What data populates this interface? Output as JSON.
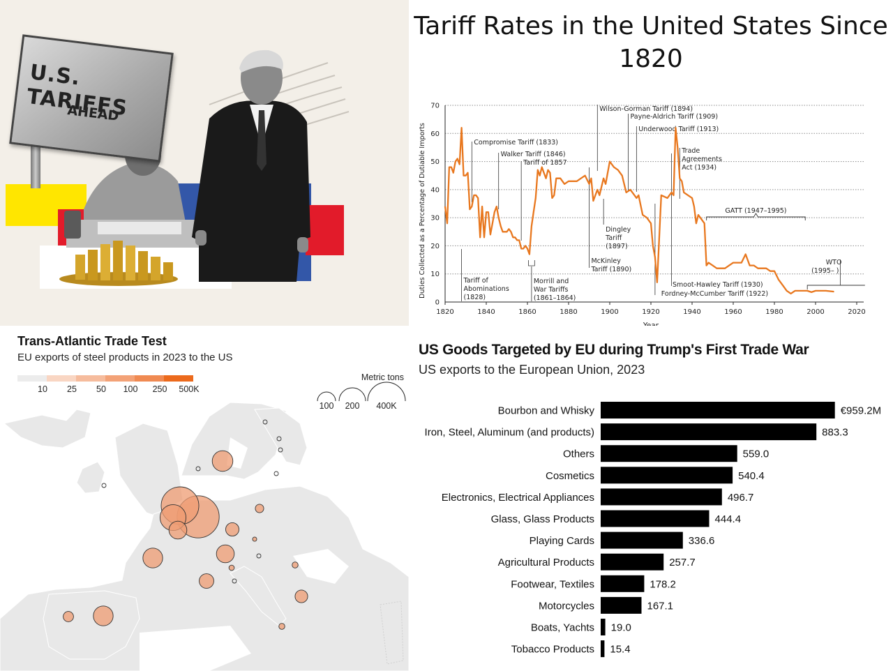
{
  "photo": {
    "sign_line1": "U.S. TARIFFS",
    "sign_line2": "AHEAD"
  },
  "chart_data": [
    {
      "type": "line",
      "title": "Tariff Rates in the United States Since 1820",
      "xlabel": "Year",
      "ylabel": "Duties Collected as a Percentage of Dutiable Imports",
      "xlim": [
        1820,
        2020
      ],
      "ylim": [
        0,
        70
      ],
      "xticks": [
        "1820",
        "1840",
        "1860",
        "1880",
        "1900",
        "1920",
        "1940",
        "1960",
        "1980",
        "2000",
        "2020"
      ],
      "yticks": [
        "0",
        "10",
        "20",
        "30",
        "40",
        "50",
        "60",
        "70"
      ],
      "grid": "horizontal dotted",
      "line_color": "#e8771e",
      "x": [
        1820,
        1821,
        1822,
        1823,
        1824,
        1825,
        1826,
        1827,
        1828,
        1829,
        1830,
        1831,
        1832,
        1833,
        1834,
        1835,
        1836,
        1837,
        1838,
        1839,
        1840,
        1841,
        1842,
        1843,
        1844,
        1845,
        1846,
        1847,
        1848,
        1849,
        1850,
        1851,
        1852,
        1853,
        1854,
        1855,
        1856,
        1857,
        1858,
        1859,
        1860,
        1861,
        1862,
        1863,
        1864,
        1865,
        1866,
        1867,
        1868,
        1869,
        1870,
        1871,
        1872,
        1873,
        1874,
        1875,
        1876,
        1878,
        1880,
        1882,
        1884,
        1886,
        1888,
        1890,
        1891,
        1892,
        1894,
        1895,
        1897,
        1898,
        1900,
        1902,
        1904,
        1906,
        1908,
        1910,
        1912,
        1913,
        1914,
        1916,
        1918,
        1920,
        1921,
        1922,
        1923,
        1925,
        1928,
        1930,
        1931,
        1932,
        1933,
        1934,
        1935,
        1936,
        1938,
        1940,
        1941,
        1942,
        1943,
        1944,
        1945,
        1946,
        1947,
        1948,
        1950,
        1952,
        1954,
        1956,
        1958,
        1960,
        1962,
        1964,
        1966,
        1968,
        1970,
        1972,
        1974,
        1976,
        1978,
        1980,
        1982,
        1984,
        1986,
        1988,
        1990,
        1992,
        1994,
        1996,
        1998,
        2000,
        2002,
        2005,
        2009
      ],
      "y": [
        34,
        28,
        48,
        48,
        46,
        50,
        51,
        49,
        62,
        45,
        45,
        46,
        33,
        34,
        38,
        38,
        37,
        23,
        34,
        23,
        32,
        32,
        24,
        28,
        32,
        34,
        30,
        27,
        25,
        25,
        25,
        26,
        25,
        23,
        23,
        22,
        22,
        19,
        19,
        20,
        19,
        17,
        27,
        32,
        37,
        47,
        45,
        48,
        46,
        44,
        47,
        46,
        37,
        38,
        44,
        44,
        44,
        42,
        43,
        43,
        43,
        44,
        45,
        42,
        44,
        36,
        40,
        38,
        44,
        42,
        50,
        48,
        47,
        45,
        39,
        40,
        38,
        37,
        38,
        31,
        30,
        28,
        20,
        16,
        7,
        38,
        37,
        39,
        38,
        62,
        55,
        44,
        43,
        39,
        38,
        37,
        34,
        28,
        31,
        30,
        29,
        28,
        13,
        14,
        13,
        12,
        12,
        12,
        13,
        14,
        14,
        14,
        17,
        13,
        13,
        12,
        12,
        12,
        11,
        11,
        8,
        6,
        4,
        3,
        4,
        4,
        4,
        4,
        3.5,
        4,
        4,
        4,
        3.7
      ],
      "annotations": [
        "Tariff of Abominations (1828)",
        "Compromise Tariff (1833)",
        "Walker Tariff (1846)",
        "Tariff of 1857",
        "Morrill and War Tariffs (1861–1864)",
        "McKinley Tariff (1890)",
        "Wilson-Gorman Tariff (1894)",
        "Dingley Tariff (1897)",
        "Payne-Aldrich Tariff (1909)",
        "Underwood Tariff (1913)",
        "Fordney-McCumber Tariff (1922)",
        "Smoot-Hawley Tariff (1930)",
        "Trade Agreements Act (1934)",
        "GATT (1947–1995)",
        "WTO (1995– )"
      ]
    },
    {
      "type": "bubble map",
      "title": "Trans-Atlantic Trade Test",
      "subtitle": "EU exports of steel products in 2023 to the US",
      "color_legend": [
        "10",
        "25",
        "50",
        "100",
        "250",
        "500K"
      ],
      "color_legend_colors": [
        "#ececec",
        "#f9d6c3",
        "#f6bc9d",
        "#f3a277",
        "#f08a52",
        "#ec6a1c"
      ],
      "size_legend_title": "Metric tons",
      "size_legend": [
        "100",
        "200",
        "400K"
      ],
      "bubble_color": "#ef9c73",
      "bubbles": [
        {
          "loc": "Netherlands",
          "value": 400
        },
        {
          "loc": "Germany",
          "value": 500
        },
        {
          "loc": "Belgium",
          "value": 190
        },
        {
          "loc": "France (north)",
          "value": 90
        },
        {
          "loc": "Sweden",
          "value": 120
        },
        {
          "loc": "Czechia",
          "value": 50
        },
        {
          "loc": "Austria",
          "value": 90
        },
        {
          "loc": "France",
          "value": 110
        },
        {
          "loc": "Italy",
          "value": 60
        },
        {
          "loc": "Spain",
          "value": 110
        },
        {
          "loc": "Portugal",
          "value": 30
        },
        {
          "loc": "Bulgaria",
          "value": 45
        },
        {
          "loc": "Poland",
          "value": 20
        },
        {
          "loc": "Slovakia",
          "value": 5
        },
        {
          "loc": "Romania",
          "value": 10
        },
        {
          "loc": "Greece",
          "value": 10
        },
        {
          "loc": "Slovenia",
          "value": 8
        },
        {
          "loc": "Finland",
          "value": 3
        },
        {
          "loc": "Estonia",
          "value": 2
        },
        {
          "loc": "Latvia",
          "value": 2
        },
        {
          "loc": "Lithuania",
          "value": 2
        },
        {
          "loc": "Denmark",
          "value": 2
        },
        {
          "loc": "Ireland",
          "value": 2
        },
        {
          "loc": "Hungary",
          "value": 3
        },
        {
          "loc": "Croatia",
          "value": 3
        }
      ]
    },
    {
      "type": "bar",
      "orientation": "horizontal",
      "title": "US Goods Targeted by EU during Trump's First Trade War",
      "subtitle": "US exports to the European Union, 2023",
      "bar_color": "#000000",
      "categories": [
        "Bourbon and Whisky",
        "Iron, Steel, Aluminum (and products)",
        "Others",
        "Cosmetics",
        "Electronics, Electrical Appliances",
        "Glass, Glass Products",
        "Playing Cards",
        "Agricultural Products",
        "Footwear, Textiles",
        "Motorcycles",
        "Boats, Yachts",
        "Tobacco Products"
      ],
      "values": [
        959.2,
        883.3,
        559.0,
        540.4,
        496.7,
        444.4,
        336.6,
        257.7,
        178.2,
        167.1,
        19.0,
        15.4
      ],
      "value_labels": [
        "€959.2M",
        "883.3",
        "559.0",
        "540.4",
        "496.7",
        "444.4",
        "336.6",
        "257.7",
        "178.2",
        "167.1",
        "19.0",
        "15.4"
      ]
    }
  ]
}
